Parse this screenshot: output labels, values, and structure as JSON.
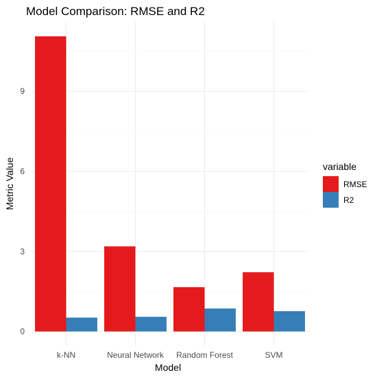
{
  "chart_data": {
    "type": "bar",
    "title": "Model Comparison: RMSE and R2",
    "xlabel": "Model",
    "ylabel": "Metric Value",
    "categories": [
      "k-NN",
      "Neural Network",
      "Random Forest",
      "SVM"
    ],
    "series": [
      {
        "name": "RMSE",
        "color": "#e41a1c",
        "values": [
          11.06,
          3.19,
          1.66,
          2.22
        ]
      },
      {
        "name": "R2",
        "color": "#377eb8",
        "values": [
          0.52,
          0.55,
          0.86,
          0.76
        ]
      }
    ],
    "yticks": [
      0,
      3,
      6,
      9
    ],
    "ylim": [
      -0.55,
      11.6
    ],
    "grid": true,
    "legend": {
      "title": "variable",
      "position": "right"
    }
  }
}
